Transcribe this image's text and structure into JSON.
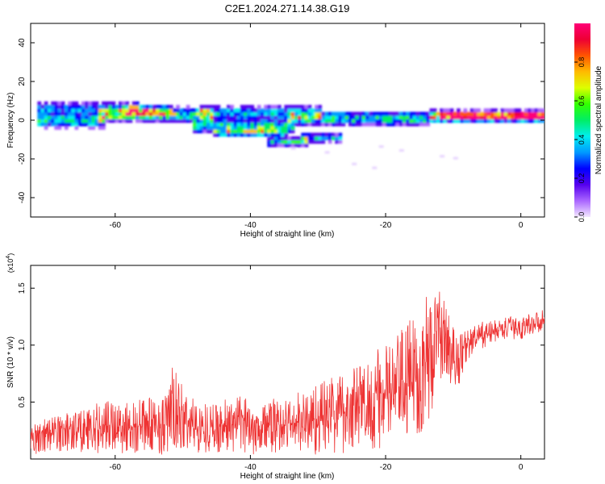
{
  "title": "C2E1.2024.271.14.38.G19",
  "chart_data": [
    {
      "type": "heatmap",
      "xlabel": "Height of straight line (km)",
      "ylabel": "Frequency (Hz)",
      "xlim": [
        -72.5,
        3.5
      ],
      "ylim": [
        -50,
        50
      ],
      "xticks": [
        -60,
        -40,
        -20,
        0
      ],
      "yticks": [
        -40,
        -20,
        0,
        20,
        40
      ],
      "xtick_labels": [
        "-60",
        "-40",
        "-20",
        "0"
      ],
      "ytick_labels": [
        "-40",
        "-20",
        "0",
        "20",
        "40"
      ],
      "colorbar": {
        "label": "Normalized spectral amplitude",
        "range": [
          0,
          1
        ],
        "ticks": [
          0.0,
          0.2,
          0.4,
          0.6,
          0.8
        ],
        "tick_labels": [
          "0.0",
          "0.2",
          "0.4",
          "0.6",
          "0.8"
        ],
        "colors": [
          "#f3e8ff",
          "#aa66ff",
          "#5500ee",
          "#0000ff",
          "#0099ff",
          "#00eeee",
          "#00ee66",
          "#33ff00",
          "#ddff00",
          "#ffbb00",
          "#ff5500",
          "#ee0033",
          "#ff0077"
        ]
      },
      "grid": false
    },
    {
      "type": "line",
      "xlabel": "Height of straight line (km)",
      "ylabel": "SNR (10 * v/v)",
      "y_multiplier": "(x10^4)",
      "xlim": [
        -72.5,
        3.5
      ],
      "ylim": [
        0,
        1.7
      ],
      "xticks": [
        -60,
        -40,
        -20,
        0
      ],
      "yticks": [
        0.5,
        1.0,
        1.5
      ],
      "xtick_labels": [
        "-60",
        "-40",
        "-20",
        "0"
      ],
      "ytick_labels": [
        "0.5",
        "1.0",
        "1.5"
      ],
      "color": "#ee3333",
      "envelope": {
        "x": [
          -72.5,
          -70,
          -67.5,
          -65,
          -62.5,
          -60,
          -57.5,
          -55,
          -52.5,
          -51.5,
          -50,
          -47.5,
          -45,
          -42.5,
          -40,
          -37.5,
          -35,
          -32.5,
          -30,
          -27.5,
          -25,
          -22.5,
          -20,
          -18,
          -16,
          -14.5,
          -13.5,
          -12.5,
          -11.5,
          -10.5,
          -9.5,
          -8,
          -6,
          -4,
          -2,
          0,
          2,
          3.5
        ],
        "mean": [
          0.18,
          0.22,
          0.24,
          0.26,
          0.27,
          0.3,
          0.28,
          0.3,
          0.3,
          0.42,
          0.34,
          0.28,
          0.28,
          0.3,
          0.3,
          0.28,
          0.3,
          0.32,
          0.36,
          0.4,
          0.44,
          0.5,
          0.56,
          0.62,
          0.72,
          0.8,
          0.9,
          1.05,
          1.1,
          0.95,
          0.85,
          1.0,
          1.08,
          1.12,
          1.15,
          1.15,
          1.2,
          1.22
        ],
        "amplitude": [
          0.14,
          0.16,
          0.18,
          0.2,
          0.22,
          0.26,
          0.24,
          0.24,
          0.28,
          0.4,
          0.3,
          0.22,
          0.22,
          0.24,
          0.26,
          0.24,
          0.24,
          0.28,
          0.32,
          0.36,
          0.38,
          0.42,
          0.46,
          0.5,
          0.55,
          0.6,
          0.6,
          0.45,
          0.35,
          0.3,
          0.28,
          0.14,
          0.12,
          0.1,
          0.1,
          0.1,
          0.1,
          0.1
        ]
      }
    }
  ]
}
